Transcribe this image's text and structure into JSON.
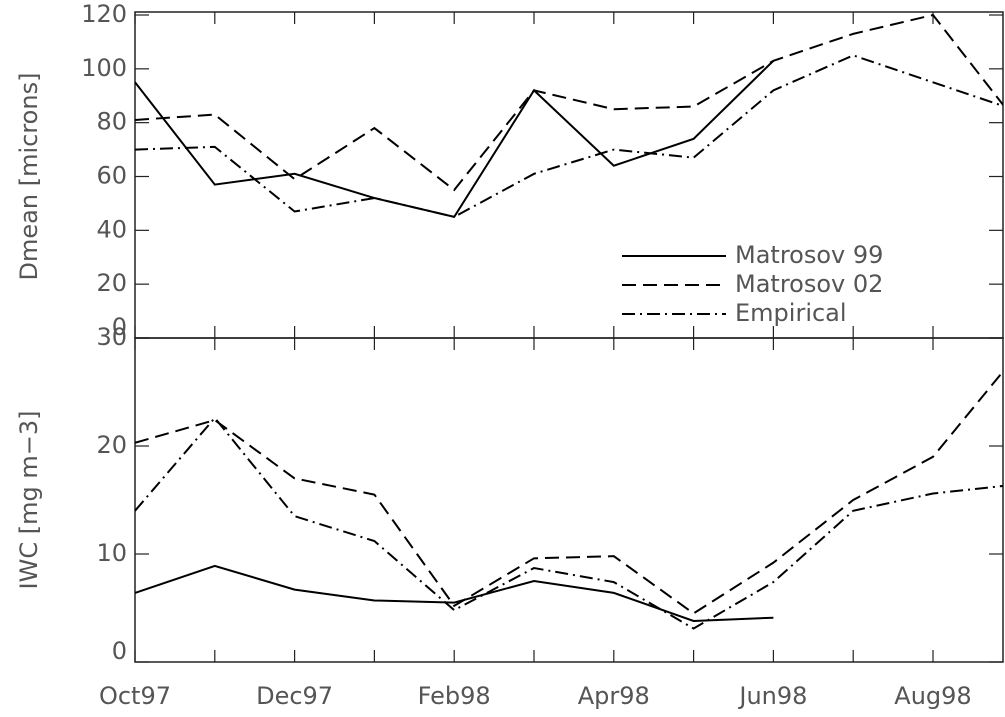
{
  "chart_data": {
    "type": "line",
    "categories": [
      "Oct97",
      null,
      "Dec97",
      null,
      "Feb98",
      null,
      "Apr98",
      null,
      "Jun98",
      null,
      "Aug98",
      null
    ],
    "panels": [
      {
        "ylabel": "Dmean [microns]",
        "ylim": [
          0,
          120
        ],
        "yticks": [
          0,
          20,
          40,
          60,
          80,
          100,
          120
        ],
        "legend": "lower right",
        "series": [
          {
            "name": "Matrosov 99",
            "color": "#000000",
            "dash": "solid",
            "values": [
              95,
              57,
              61,
              52,
              45,
              92,
              64,
              74,
              103,
              null,
              null,
              null
            ]
          },
          {
            "name": "Matrosov 02",
            "color": "#000000",
            "dash": "dashed",
            "values": [
              81,
              83,
              59,
              78,
              55,
              92,
              85,
              86,
              103,
              113,
              120,
              82
            ]
          },
          {
            "name": "Empirical",
            "color": "#000000",
            "dash": "dashdot",
            "values": [
              70,
              71,
              47,
              52,
              45,
              61,
              70,
              67,
              92,
              105,
              95,
              85
            ]
          }
        ]
      },
      {
        "ylabel": "IWC [mg m−3]",
        "ylim": [
          0,
          30
        ],
        "yticks": [
          0,
          10,
          20,
          30
        ],
        "series": [
          {
            "color": "#000000",
            "dash": "solid",
            "values": [
              6.4,
              8.9,
              6.7,
              5.7,
              5.5,
              7.5,
              6.4,
              3.8,
              4.1,
              null,
              null,
              null
            ]
          },
          {
            "color": "#000000",
            "dash": "dashed",
            "values": [
              20.3,
              22.4,
              17,
              15.5,
              5.2,
              9.6,
              9.8,
              4.5,
              9.2,
              15,
              19,
              28
            ]
          },
          {
            "color": "#000000",
            "dash": "dashdot",
            "values": [
              14,
              22.6,
              13.5,
              11.2,
              4.8,
              8.7,
              7.4,
              3.1,
              7.4,
              14,
              15.6,
              16.4
            ]
          }
        ]
      }
    ]
  }
}
